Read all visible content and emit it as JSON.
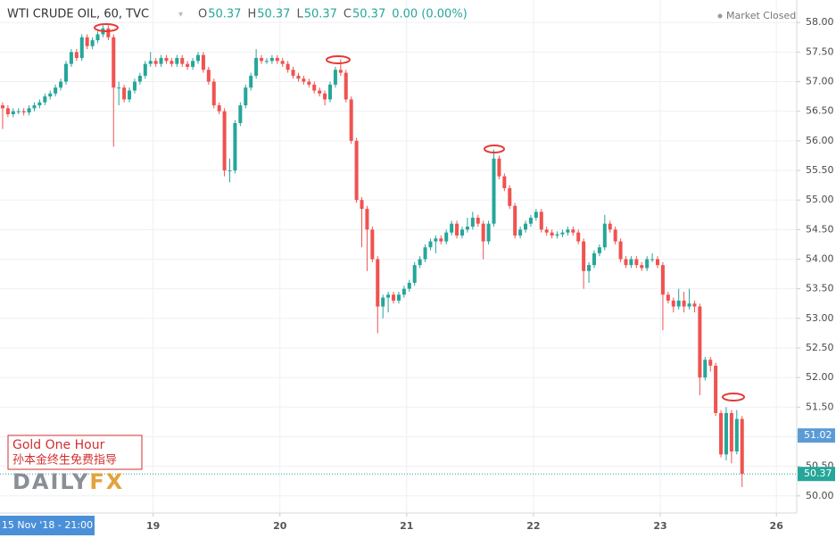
{
  "chart_data": {
    "type": "candlestick",
    "title": "WTI CRUDE OIL, 60, TVC",
    "legend_ohlc": [
      {
        "label": "O",
        "value": 50.37
      },
      {
        "label": "H",
        "value": 50.37
      },
      {
        "label": "L",
        "value": 50.37
      },
      {
        "label": "C",
        "value": 50.37
      }
    ],
    "change": "0.00 (0.00%)",
    "status": "Market Closed",
    "cursor_label": "15 Nov '18 - 21:00",
    "watermark": {
      "lines": [
        "Gold One Hour",
        "孙本金终生免费指导"
      ],
      "logo": [
        "DAILY",
        "FX"
      ]
    },
    "up_color": "#26a69a",
    "down_color": "#ef5350",
    "last_price": {
      "value": 50.37,
      "label": "50.37",
      "color": "#26a69a"
    },
    "marker_price": {
      "value": 51.02,
      "label": "51.02",
      "color": "#5b9bd5"
    },
    "xlim": [
      -0.5,
      150.35
    ],
    "xticks": [
      {
        "value": 28.5,
        "label": "19"
      },
      {
        "value": 52.5,
        "label": "20"
      },
      {
        "value": 76.5,
        "label": "21"
      },
      {
        "value": 100.5,
        "label": "22"
      },
      {
        "value": 124.5,
        "label": "23"
      },
      {
        "value": 146.5,
        "label": "26"
      }
    ],
    "ylim": [
      49.71,
      58.38
    ],
    "yticks": [
      {
        "value": 50,
        "label": "50.00"
      },
      {
        "value": 50.5,
        "label": "50.50"
      },
      {
        "value": 51,
        "label": "51.00"
      },
      {
        "value": 51.5,
        "label": "51.50"
      },
      {
        "value": 52,
        "label": "52.00"
      },
      {
        "value": 52.5,
        "label": "52.50"
      },
      {
        "value": 53,
        "label": "53.00"
      },
      {
        "value": 53.5,
        "label": "53.50"
      },
      {
        "value": 54,
        "label": "54.00"
      },
      {
        "value": 54.5,
        "label": "54.50"
      },
      {
        "value": 55,
        "label": "55.00"
      },
      {
        "value": 55.5,
        "label": "55.50"
      },
      {
        "value": 56,
        "label": "56.00"
      },
      {
        "value": 56.5,
        "label": "56.50"
      },
      {
        "value": 57,
        "label": "57.00"
      },
      {
        "value": 57.5,
        "label": "57.50"
      },
      {
        "value": 58,
        "label": "58.00"
      }
    ],
    "grid": true,
    "candles": {
      "open": [
        56.6,
        56.55,
        56.45,
        56.5,
        56.5,
        56.48,
        56.55,
        56.6,
        56.65,
        56.75,
        56.8,
        56.9,
        57.0,
        57.3,
        57.5,
        57.4,
        57.75,
        57.6,
        57.7,
        57.8,
        57.9,
        57.75,
        56.9,
        56.9,
        56.7,
        56.85,
        57.0,
        57.1,
        57.3,
        57.35,
        57.3,
        57.4,
        57.35,
        57.3,
        57.4,
        57.3,
        57.25,
        57.35,
        57.45,
        57.2,
        57.0,
        56.6,
        56.5,
        55.5,
        55.5,
        56.3,
        56.6,
        56.9,
        57.1,
        57.4,
        57.35,
        57.35,
        57.4,
        57.35,
        57.3,
        57.2,
        57.1,
        57.05,
        57.0,
        56.95,
        56.85,
        56.8,
        56.7,
        56.95,
        57.2,
        57.15,
        56.7,
        56.0,
        55.0,
        54.85,
        54.5,
        54.0,
        53.2,
        53.35,
        53.4,
        53.3,
        53.4,
        53.5,
        53.6,
        53.9,
        54.0,
        54.2,
        54.3,
        54.35,
        54.3,
        54.45,
        54.6,
        54.4,
        54.5,
        54.55,
        54.7,
        54.6,
        54.3,
        54.6,
        55.7,
        55.4,
        55.2,
        54.9,
        54.4,
        54.5,
        54.6,
        54.7,
        54.8,
        54.5,
        54.45,
        54.4,
        54.42,
        54.45,
        54.5,
        54.45,
        54.3,
        53.8,
        53.9,
        54.1,
        54.2,
        54.6,
        54.5,
        54.3,
        54.0,
        53.9,
        54.0,
        53.9,
        53.85,
        54.0,
        54.0,
        53.9,
        53.4,
        53.3,
        53.2,
        53.3,
        53.2,
        53.25,
        53.2,
        52.0,
        52.3,
        52.2,
        51.4,
        50.7,
        51.4,
        50.75,
        51.3
      ],
      "high": [
        56.65,
        56.6,
        56.55,
        56.55,
        56.55,
        56.6,
        56.65,
        56.7,
        56.8,
        56.85,
        56.95,
        57.05,
        57.35,
        57.55,
        57.55,
        57.8,
        57.8,
        57.75,
        57.85,
        57.95,
        57.95,
        57.8,
        57.0,
        56.95,
        56.9,
        57.05,
        57.15,
        57.35,
        57.5,
        57.4,
        57.45,
        57.45,
        57.4,
        57.45,
        57.45,
        57.35,
        57.4,
        57.5,
        57.5,
        57.25,
        57.05,
        56.65,
        56.55,
        55.7,
        56.35,
        56.65,
        56.95,
        57.15,
        57.55,
        57.45,
        57.4,
        57.45,
        57.45,
        57.4,
        57.35,
        57.25,
        57.15,
        57.1,
        57.05,
        57.0,
        56.9,
        56.85,
        57.0,
        57.25,
        57.38,
        57.2,
        56.75,
        56.05,
        55.05,
        54.9,
        54.55,
        54.05,
        53.4,
        53.45,
        53.45,
        53.45,
        53.55,
        53.65,
        53.95,
        54.05,
        54.25,
        54.35,
        54.4,
        54.4,
        54.5,
        54.65,
        54.65,
        54.55,
        54.7,
        54.8,
        54.75,
        54.65,
        54.65,
        55.85,
        55.75,
        55.45,
        55.25,
        54.95,
        54.55,
        54.65,
        54.75,
        54.85,
        54.85,
        54.55,
        54.5,
        54.47,
        54.5,
        54.55,
        54.55,
        54.5,
        54.35,
        53.95,
        54.15,
        54.25,
        54.75,
        54.65,
        54.55,
        54.35,
        54.05,
        54.05,
        54.05,
        53.95,
        54.05,
        54.1,
        54.05,
        53.95,
        53.45,
        53.35,
        53.5,
        53.45,
        53.5,
        53.3,
        53.25,
        52.35,
        52.35,
        52.25,
        51.45,
        51.5,
        51.45,
        51.45,
        51.35
      ],
      "low": [
        56.2,
        56.4,
        56.4,
        56.45,
        56.43,
        56.43,
        56.5,
        56.55,
        56.6,
        56.7,
        56.75,
        56.85,
        56.95,
        57.25,
        57.35,
        57.35,
        57.55,
        57.55,
        57.65,
        57.75,
        57.7,
        55.9,
        56.6,
        56.65,
        56.65,
        56.8,
        56.95,
        57.05,
        57.25,
        57.25,
        57.25,
        57.3,
        57.25,
        57.25,
        57.25,
        57.2,
        57.2,
        57.3,
        57.15,
        56.95,
        56.55,
        56.45,
        55.4,
        55.3,
        55.45,
        56.25,
        56.55,
        56.85,
        57.05,
        57.3,
        57.3,
        57.3,
        57.3,
        57.25,
        57.15,
        57.05,
        57.0,
        56.95,
        56.9,
        56.8,
        56.75,
        56.6,
        56.65,
        56.9,
        57.1,
        56.65,
        55.95,
        54.95,
        54.2,
        53.8,
        53.95,
        52.75,
        53.0,
        53.1,
        53.25,
        53.25,
        53.35,
        53.45,
        53.55,
        53.85,
        53.95,
        54.15,
        54.1,
        54.25,
        54.25,
        54.4,
        54.35,
        54.35,
        54.45,
        54.5,
        54.55,
        54.0,
        54.25,
        54.55,
        55.35,
        55.15,
        54.85,
        54.35,
        54.35,
        54.45,
        54.55,
        54.65,
        54.45,
        54.4,
        54.35,
        54.35,
        54.37,
        54.4,
        54.4,
        54.25,
        53.5,
        53.6,
        53.85,
        54.05,
        54.15,
        54.45,
        54.25,
        53.95,
        53.85,
        53.85,
        53.85,
        53.8,
        53.8,
        53.95,
        53.85,
        52.8,
        53.25,
        53.1,
        53.15,
        53.1,
        53.15,
        53.1,
        51.7,
        51.95,
        52.1,
        51.35,
        50.65,
        50.6,
        50.55,
        50.7,
        50.15
      ],
      "close": [
        56.55,
        56.45,
        56.5,
        56.5,
        56.48,
        56.55,
        56.6,
        56.65,
        56.75,
        56.8,
        56.9,
        57.0,
        57.3,
        57.5,
        57.4,
        57.75,
        57.6,
        57.7,
        57.8,
        57.9,
        57.75,
        56.9,
        56.9,
        56.7,
        56.85,
        57.0,
        57.1,
        57.3,
        57.35,
        57.3,
        57.4,
        57.35,
        57.3,
        57.4,
        57.3,
        57.25,
        57.35,
        57.45,
        57.2,
        57.0,
        56.6,
        56.5,
        55.5,
        55.5,
        56.3,
        56.6,
        56.9,
        57.1,
        57.4,
        57.35,
        57.35,
        57.4,
        57.35,
        57.3,
        57.2,
        57.1,
        57.05,
        57.0,
        56.95,
        56.85,
        56.8,
        56.7,
        56.95,
        57.2,
        57.15,
        56.7,
        56.0,
        55.0,
        54.85,
        54.5,
        54.0,
        53.2,
        53.35,
        53.4,
        53.3,
        53.4,
        53.5,
        53.6,
        53.9,
        54.0,
        54.2,
        54.3,
        54.35,
        54.3,
        54.45,
        54.6,
        54.4,
        54.5,
        54.55,
        54.7,
        54.6,
        54.3,
        54.6,
        55.7,
        55.4,
        55.2,
        54.9,
        54.4,
        54.5,
        54.6,
        54.7,
        54.8,
        54.5,
        54.45,
        54.4,
        54.42,
        54.45,
        54.5,
        54.45,
        54.3,
        53.8,
        53.9,
        54.1,
        54.2,
        54.6,
        54.5,
        54.3,
        54.0,
        53.9,
        54.0,
        53.9,
        53.85,
        54.0,
        54.0,
        53.9,
        53.4,
        53.3,
        53.2,
        53.3,
        53.2,
        53.25,
        53.2,
        52.0,
        52.3,
        52.2,
        51.4,
        50.7,
        51.4,
        50.75,
        51.3,
        50.37
      ]
    }
  }
}
